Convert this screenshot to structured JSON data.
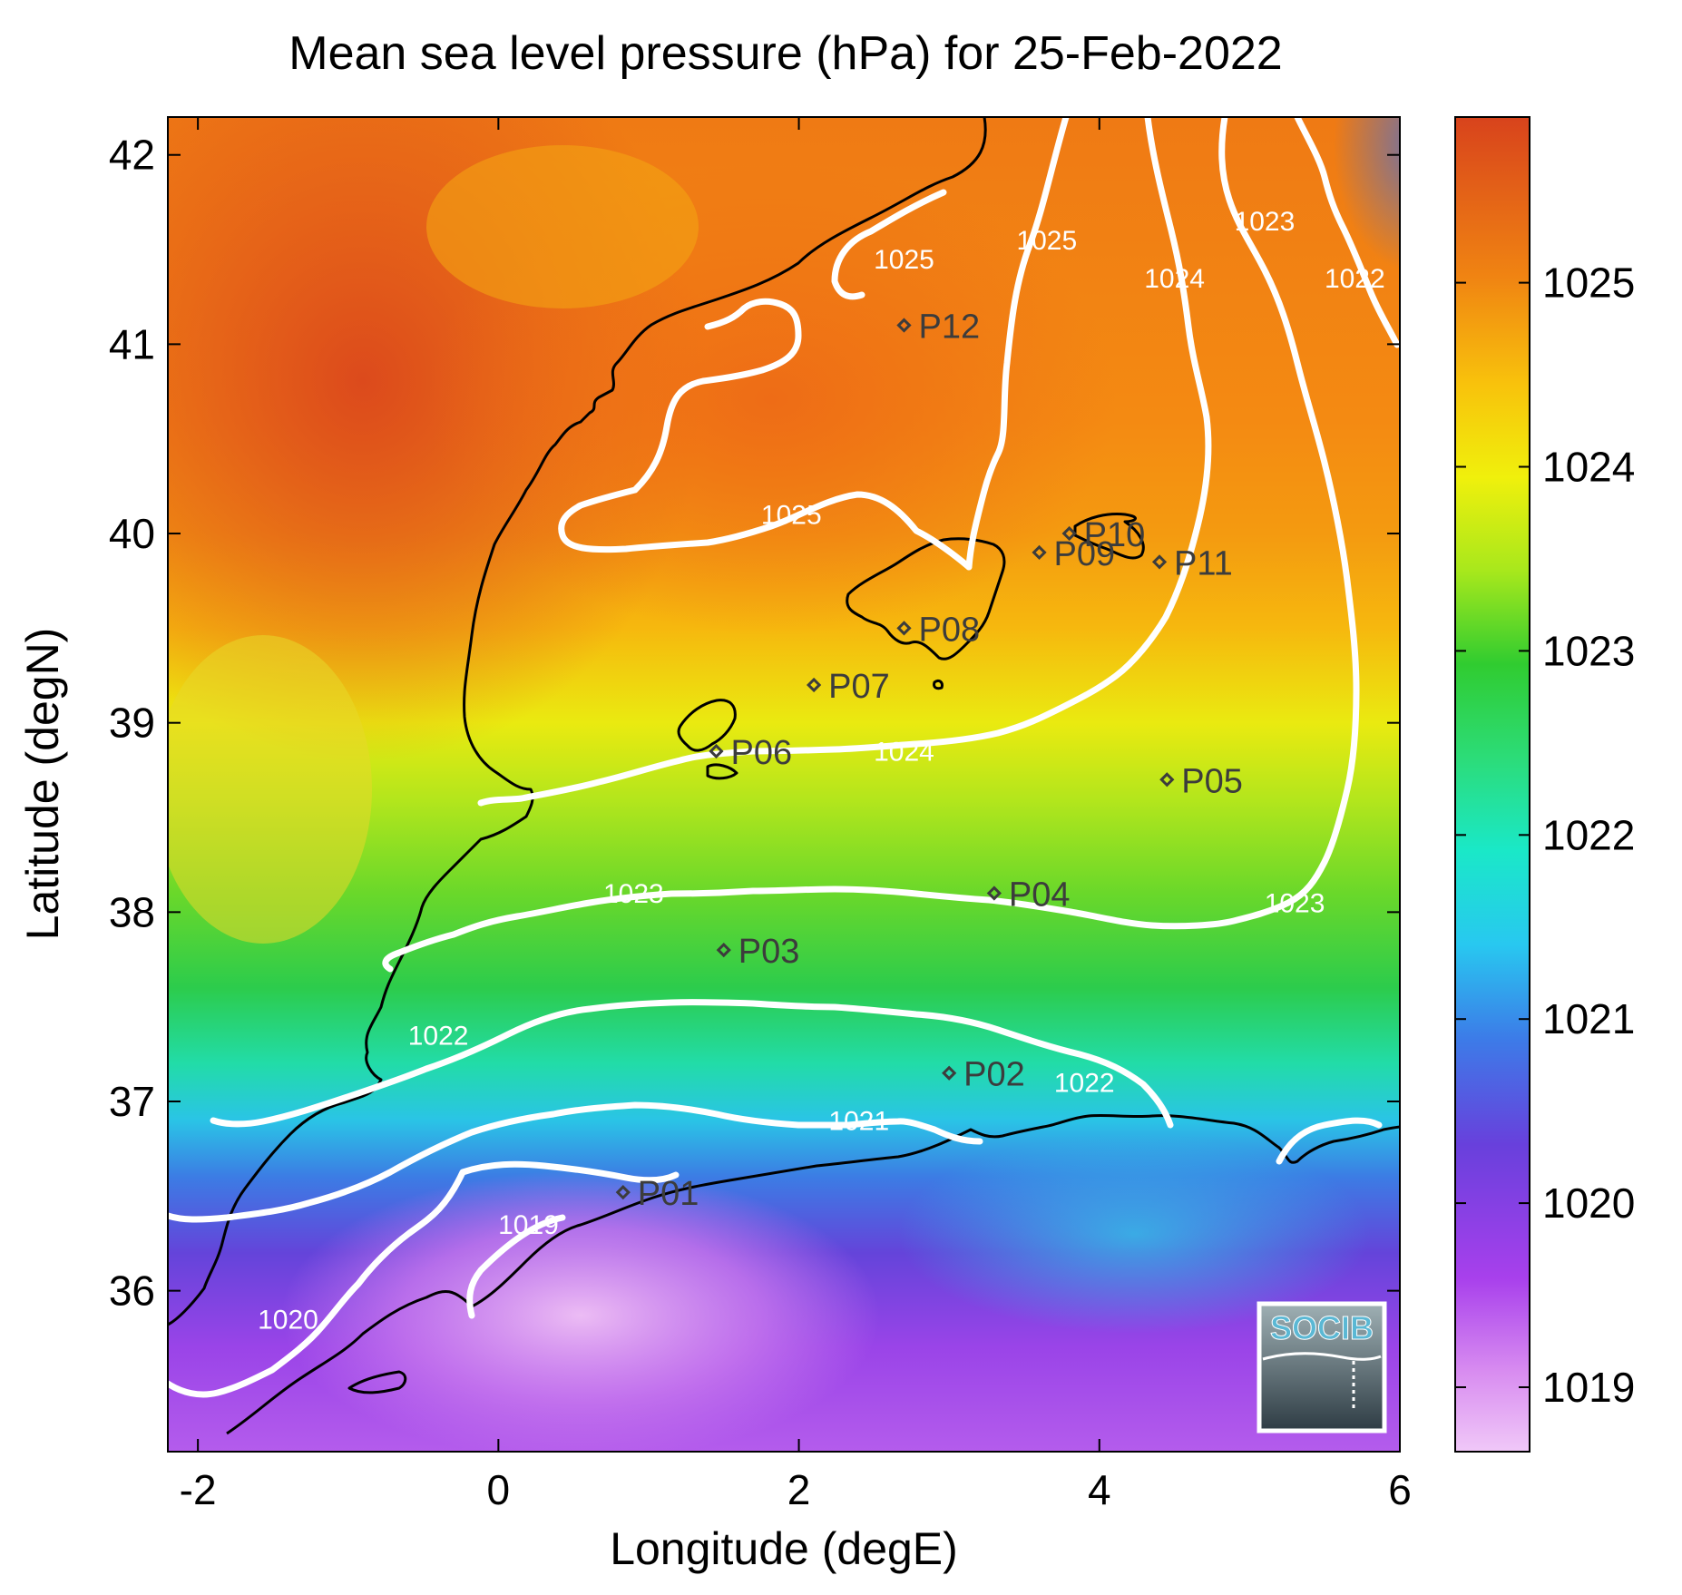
{
  "title": "Mean sea level pressure (hPa) for 25-Feb-2022",
  "xlabel": "Longitude (degE)",
  "ylabel": "Latitude (degN)",
  "logo_text": "SOCIB",
  "colors": {
    "high": "#de4a1c",
    "mid": "#28c83c",
    "low": "#e8b4f4",
    "contour": "#ffffff",
    "coast": "#000000",
    "station": "#3c3c3c"
  },
  "chart_data": {
    "type": "heatmap",
    "title": "Mean sea level pressure (hPa) for 25-Feb-2022",
    "xlabel": "Longitude (degE)",
    "ylabel": "Latitude (degN)",
    "xlim": [
      -2.2,
      6.0
    ],
    "ylim": [
      35.15,
      42.2
    ],
    "xticks": [
      -2,
      0,
      2,
      4,
      6
    ],
    "yticks": [
      36,
      37,
      38,
      39,
      40,
      41,
      42
    ],
    "colorbar": {
      "range": [
        1018.65,
        1025.9
      ],
      "ticks": [
        1019,
        1020,
        1021,
        1022,
        1023,
        1024,
        1025
      ]
    },
    "contour_levels": [
      1019,
      1020,
      1021,
      1022,
      1023,
      1024,
      1025
    ],
    "contour_labels": [
      {
        "level": "1025",
        "lon": 2.7,
        "lat": 41.4
      },
      {
        "level": "1025",
        "lon": 3.65,
        "lat": 41.5
      },
      {
        "level": "1025",
        "lon": 1.95,
        "lat": 40.05
      },
      {
        "level": "1024",
        "lon": 4.5,
        "lat": 41.3
      },
      {
        "level": "1024",
        "lon": 2.7,
        "lat": 38.8
      },
      {
        "level": "1023",
        "lon": 5.1,
        "lat": 41.6
      },
      {
        "level": "1023",
        "lon": 0.9,
        "lat": 38.05
      },
      {
        "level": "1023",
        "lon": 5.3,
        "lat": 38.0
      },
      {
        "level": "1022",
        "lon": 5.7,
        "lat": 41.3
      },
      {
        "level": "1022",
        "lon": -0.4,
        "lat": 37.3
      },
      {
        "level": "1022",
        "lon": 3.9,
        "lat": 37.05
      },
      {
        "level": "1021",
        "lon": 2.4,
        "lat": 36.85
      },
      {
        "level": "1019",
        "lon": 0.2,
        "lat": 36.3
      },
      {
        "level": "1020",
        "lon": -1.4,
        "lat": 35.8
      }
    ],
    "stations": [
      {
        "name": "P01",
        "lon": 0.83,
        "lat": 36.52
      },
      {
        "name": "P02",
        "lon": 3.0,
        "lat": 37.15
      },
      {
        "name": "P03",
        "lon": 1.5,
        "lat": 37.8
      },
      {
        "name": "P04",
        "lon": 3.3,
        "lat": 38.1
      },
      {
        "name": "P05",
        "lon": 4.45,
        "lat": 38.7
      },
      {
        "name": "P06",
        "lon": 1.45,
        "lat": 38.85
      },
      {
        "name": "P07",
        "lon": 2.1,
        "lat": 39.2
      },
      {
        "name": "P08",
        "lon": 2.7,
        "lat": 39.5
      },
      {
        "name": "P09",
        "lon": 3.6,
        "lat": 39.9
      },
      {
        "name": "P10",
        "lon": 3.8,
        "lat": 40.0
      },
      {
        "name": "P11",
        "lon": 4.4,
        "lat": 39.85
      },
      {
        "name": "P12",
        "lon": 2.7,
        "lat": 41.1
      }
    ]
  }
}
